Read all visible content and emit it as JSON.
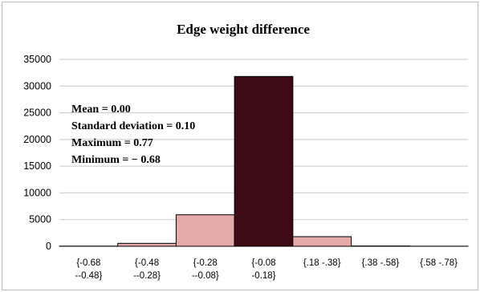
{
  "chart_data": {
    "type": "bar",
    "title": "Edge weight difference",
    "xlabel": "",
    "ylabel": "",
    "ylim": [
      0,
      35000
    ],
    "yticks": [
      0,
      5000,
      10000,
      15000,
      20000,
      25000,
      30000,
      35000
    ],
    "grid": true,
    "categories": [
      [
        "{-0.68",
        "--0.48}"
      ],
      [
        "{-0.48",
        "--0.28}"
      ],
      [
        "{-0.28",
        "--0.08}"
      ],
      [
        "{-0.08",
        "-0.18}"
      ],
      [
        "{.18 -.38}"
      ],
      [
        "{.38 -.58}"
      ],
      [
        "{.58 -.78}"
      ]
    ],
    "values": [
      30,
      550,
      5900,
      31800,
      1800,
      60,
      20
    ],
    "colors": [
      "#e6a9a9",
      "#e6a9a9",
      "#e6a9a9",
      "#3d0a15",
      "#e6a9a9",
      "#e6a9a9",
      "#e6a9a9"
    ],
    "annotations": [
      "Mean = 0.00",
      "Standard deviation = 0.10",
      "Maximum = 0.77",
      "Minimum = − 0.68"
    ]
  }
}
